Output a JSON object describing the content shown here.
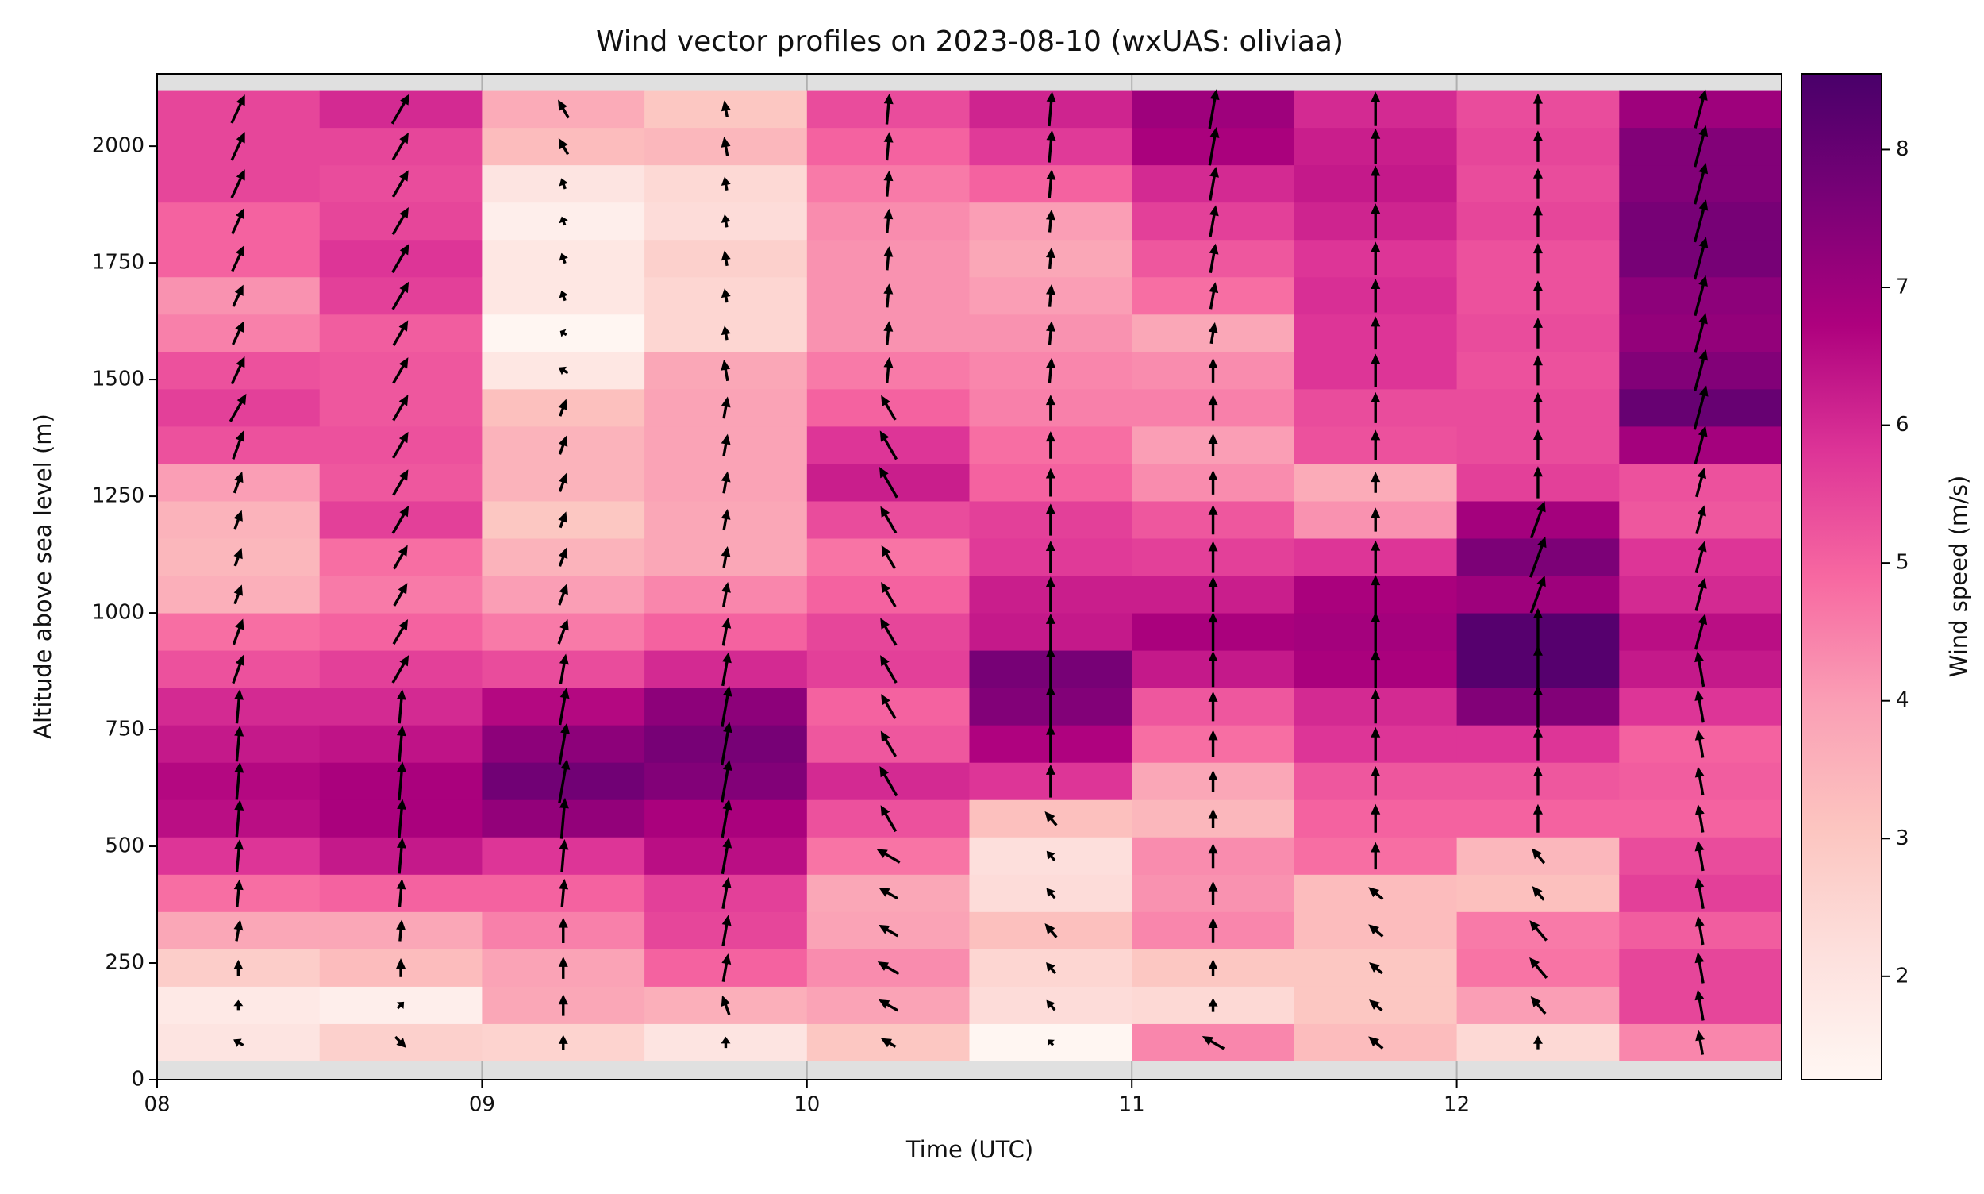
{
  "chart_data": {
    "type": "heatmap",
    "title": "Wind vector profiles on 2023-08-10 (wxUAS: oliviaa)",
    "x_label": "Time (UTC)",
    "y_label": "Altitude above sea level (m)",
    "colorbar_label": "Wind speed (m/s)",
    "x": [
      8.25,
      8.75,
      9.25,
      9.75,
      10.25,
      10.75,
      11.25,
      11.75,
      12.25,
      12.75
    ],
    "y": [
      80,
      160,
      240,
      320,
      400,
      480,
      560,
      640,
      720,
      800,
      880,
      960,
      1040,
      1120,
      1200,
      1280,
      1360,
      1440,
      1520,
      1600,
      1680,
      1760,
      1840,
      1920,
      2000,
      2080
    ],
    "speed": [
      [
        2.0,
        1.8,
        2.8,
        3.8,
        4.8,
        5.8,
        6.5,
        6.6,
        6.3,
        6.0,
        5.3,
        4.8,
        3.6,
        3.4,
        3.5,
        4.0,
        5.3,
        5.6,
        5.3,
        4.5,
        4.2,
        5.0,
        5.0,
        5.5,
        5.5,
        5.5
      ],
      [
        2.7,
        1.6,
        3.3,
        3.8,
        5.0,
        6.3,
        6.8,
        6.8,
        6.4,
        6.0,
        5.6,
        5.0,
        4.6,
        4.8,
        5.6,
        5.2,
        5.3,
        5.2,
        5.2,
        5.1,
        5.6,
        5.8,
        5.5,
        5.4,
        5.5,
        6.0
      ],
      [
        2.6,
        3.8,
        3.9,
        4.5,
        5.0,
        5.8,
        7.2,
        7.8,
        7.3,
        6.6,
        5.4,
        4.6,
        4.0,
        3.5,
        3.0,
        3.5,
        3.5,
        3.2,
        1.9,
        1.3,
        1.9,
        1.9,
        1.6,
        2.0,
        3.3,
        3.7
      ],
      [
        2.0,
        3.6,
        5.0,
        5.5,
        5.6,
        6.5,
        6.8,
        7.5,
        7.7,
        7.3,
        6.0,
        5.0,
        4.4,
        3.8,
        3.8,
        3.9,
        3.9,
        3.9,
        3.8,
        2.5,
        2.5,
        2.7,
        2.3,
        2.4,
        3.4,
        3.0
      ],
      [
        3.0,
        3.9,
        4.3,
        3.9,
        3.8,
        4.7,
        5.3,
        6.0,
        5.2,
        5.0,
        5.6,
        5.5,
        5.0,
        4.7,
        5.4,
        6.2,
        5.8,
        5.0,
        4.6,
        4.2,
        4.2,
        4.2,
        4.3,
        4.6,
        5.0,
        5.4
      ],
      [
        1.3,
        2.3,
        2.5,
        3.2,
        2.3,
        2.2,
        3.2,
        5.8,
        6.7,
        7.5,
        7.7,
        6.3,
        6.2,
        5.7,
        5.6,
        5.0,
        4.8,
        4.5,
        4.4,
        4.2,
        4.0,
        3.8,
        4.0,
        5.0,
        5.7,
        6.1
      ],
      [
        4.4,
        2.4,
        3.0,
        4.4,
        4.2,
        4.3,
        3.4,
        3.8,
        4.8,
        5.2,
        6.3,
        6.8,
        6.2,
        5.6,
        5.2,
        4.3,
        4.0,
        4.5,
        4.3,
        3.8,
        4.8,
        5.2,
        5.6,
        6.0,
        6.8,
        7.0
      ],
      [
        3.3,
        3.0,
        3.0,
        3.3,
        3.3,
        4.8,
        5.0,
        5.2,
        5.8,
        6.0,
        6.8,
        6.9,
        6.8,
        5.8,
        4.2,
        3.7,
        5.3,
        5.4,
        5.8,
        5.8,
        5.9,
        5.8,
        6.1,
        6.3,
        6.2,
        6.0
      ],
      [
        2.4,
        4.0,
        4.7,
        4.6,
        3.2,
        3.4,
        5.0,
        5.2,
        5.8,
        7.5,
        8.3,
        8.3,
        7.0,
        7.6,
        6.9,
        5.6,
        5.4,
        5.4,
        5.3,
        5.4,
        5.3,
        5.3,
        5.5,
        5.4,
        5.5,
        5.4
      ],
      [
        4.4,
        5.5,
        5.5,
        5.1,
        5.6,
        5.4,
        5.0,
        5.1,
        5.0,
        5.8,
        6.3,
        6.5,
        6.0,
        5.8,
        5.2,
        5.3,
        6.9,
        8.0,
        7.5,
        7.2,
        7.3,
        7.7,
        7.7,
        7.5,
        7.5,
        7.0
      ]
    ],
    "direction": [
      [
        300,
        0,
        0,
        10,
        5,
        5,
        5,
        5,
        5,
        5,
        20,
        20,
        20,
        20,
        20,
        20,
        20,
        30,
        25,
        25,
        25,
        25,
        25,
        25,
        25,
        25
      ],
      [
        135,
        45,
        0,
        5,
        5,
        5,
        5,
        5,
        5,
        5,
        30,
        30,
        30,
        30,
        30,
        30,
        30,
        30,
        30,
        30,
        30,
        30,
        30,
        30,
        30,
        30
      ],
      [
        0,
        0,
        0,
        0,
        5,
        5,
        5,
        10,
        10,
        10,
        10,
        20,
        20,
        20,
        20,
        20,
        20,
        20,
        300,
        300,
        340,
        340,
        340,
        340,
        330,
        330
      ],
      [
        0,
        340,
        10,
        10,
        10,
        10,
        10,
        10,
        10,
        10,
        10,
        10,
        10,
        10,
        10,
        10,
        10,
        10,
        350,
        350,
        350,
        350,
        350,
        350,
        350,
        350
      ],
      [
        300,
        300,
        300,
        300,
        300,
        300,
        330,
        330,
        330,
        330,
        330,
        330,
        330,
        330,
        330,
        330,
        330,
        330,
        5,
        5,
        5,
        5,
        5,
        5,
        5,
        5
      ],
      [
        320,
        320,
        320,
        320,
        320,
        320,
        320,
        0,
        0,
        0,
        0,
        0,
        0,
        0,
        0,
        0,
        0,
        0,
        5,
        5,
        5,
        5,
        5,
        5,
        5,
        5
      ],
      [
        300,
        0,
        0,
        0,
        0,
        0,
        0,
        0,
        0,
        0,
        0,
        0,
        0,
        0,
        0,
        0,
        0,
        0,
        0,
        10,
        10,
        10,
        10,
        10,
        10,
        10
      ],
      [
        310,
        310,
        310,
        310,
        310,
        0,
        0,
        0,
        0,
        0,
        0,
        0,
        0,
        0,
        0,
        0,
        0,
        0,
        0,
        0,
        0,
        0,
        0,
        0,
        0,
        0
      ],
      [
        0,
        320,
        320,
        320,
        320,
        320,
        0,
        0,
        0,
        0,
        0,
        0,
        20,
        20,
        20,
        0,
        0,
        0,
        0,
        0,
        0,
        0,
        0,
        0,
        0,
        0
      ],
      [
        350,
        350,
        350,
        350,
        350,
        350,
        350,
        350,
        350,
        350,
        350,
        15,
        15,
        15,
        15,
        15,
        15,
        15,
        15,
        15,
        15,
        15,
        15,
        15,
        15,
        15
      ]
    ],
    "xlim": [
      8,
      13
    ],
    "xticks": [
      {
        "value": 8,
        "label": "08"
      },
      {
        "value": 9,
        "label": "09"
      },
      10,
      11,
      12
    ],
    "ylim": [
      0,
      2155
    ],
    "yticks": [
      0,
      250,
      500,
      750,
      1000,
      1250,
      1500,
      1750,
      2000
    ],
    "clim": [
      1.25,
      8.55
    ],
    "cticks": [
      2,
      3,
      4,
      5,
      6,
      7,
      8
    ],
    "colors": [
      "#fff7f3",
      "#fde0dd",
      "#fcc5c0",
      "#fa9fb5",
      "#f768a1",
      "#dd3497",
      "#ae017e",
      "#7a0177",
      "#49006a"
    ],
    "grid": true
  }
}
